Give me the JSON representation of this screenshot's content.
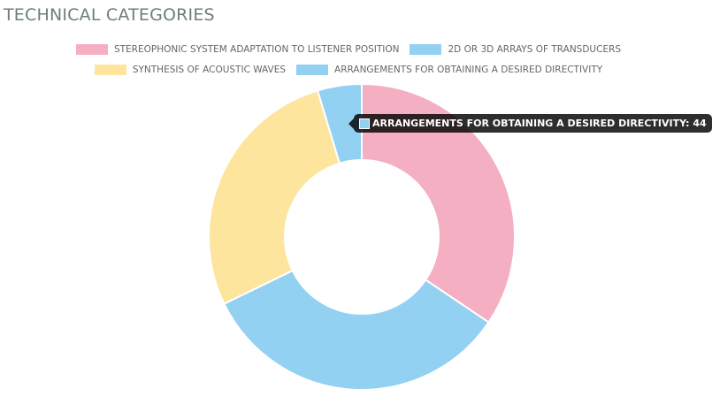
{
  "page": {
    "title": "TECHNICAL CATEGORIES"
  },
  "chart_data": {
    "type": "pie",
    "variant": "doughnut",
    "title": "TECHNICAL CATEGORIES",
    "categories": [
      "STEREOPHONIC SYSTEM ADAPTATION TO LISTENER POSITION",
      "2D OR 3D ARRAYS OF TRANSDUCERS",
      "SYNTHESIS OF ACOUSTIC WAVES",
      "ARRANGEMENTS FOR OBTAINING A DESIRED DIRECTIVITY"
    ],
    "values": [
      325,
      315,
      260,
      44
    ],
    "colors": [
      "#f4afc2",
      "#93d1f2",
      "#fee59e",
      "#93d1f2"
    ],
    "legend_position": "top",
    "tooltip": {
      "text": "ARRANGEMENTS FOR OBTAINING A DESIRED DIRECTIVITY: 44",
      "color": "#93d1f2"
    }
  }
}
